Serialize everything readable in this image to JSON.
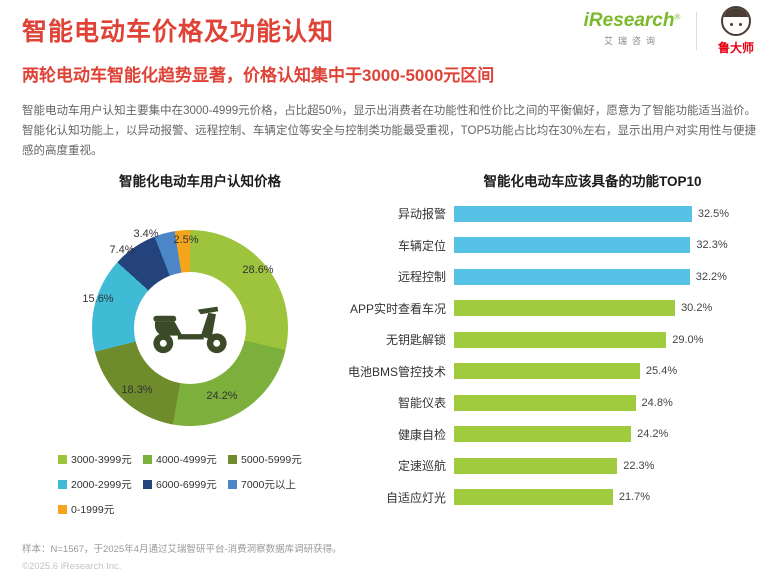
{
  "colors": {
    "accent_red": "#DF4337",
    "brand_green": "#7AB929",
    "ludashi_red": "#E60012",
    "scooter_icon": "#3B4A28"
  },
  "header": {
    "title": "智能电动车价格及功能认知",
    "subtitle": "两轮电动车智能化趋势显著，价格认知集中于3000-5000元区间"
  },
  "logos": {
    "iresearch_name": "iResearch",
    "iresearch_reg": "®",
    "iresearch_cn": "艾瑞咨询",
    "ludashi": "鲁大师"
  },
  "intro": "智能电动车用户认知主要集中在3000-4999元价格，占比超50%，显示出消费者在功能性和性价比之间的平衡偏好，愿意为了智能功能适当溢价。智能化认知功能上，以异动报警、远程控制、车辆定位等安全与控制类功能最受重视，TOP5功能占比均在30%左右，显示出用户对实用性与便捷感的高度重视。",
  "footnote": "样本：N=1567，于2025年4月通过艾瑞智研平台-消费洞察数据库调研获得。",
  "copyright": "©2025.6 iResearch Inc.",
  "chart_data": [
    {
      "type": "pie",
      "title": "智能化电动车用户认知价格",
      "center_icon": "scooter-icon",
      "slices": [
        {
          "label": "3000-3999元",
          "value": 28.6,
          "display": "28.6%",
          "color": "#9DC43C"
        },
        {
          "label": "4000-4999元",
          "value": 24.2,
          "display": "24.2%",
          "color": "#7CAF3C"
        },
        {
          "label": "5000-5999元",
          "value": 18.3,
          "display": "18.3%",
          "color": "#6E8C2B"
        },
        {
          "label": "2000-2999元",
          "value": 15.6,
          "display": "15.6%",
          "color": "#3FBBD5"
        },
        {
          "label": "6000-6999元",
          "value": 7.4,
          "display": "7.4%",
          "color": "#24437C"
        },
        {
          "label": "7000元以上",
          "value": 3.4,
          "display": "3.4%",
          "color": "#4B86C8"
        },
        {
          "label": "0-1999元",
          "value": 2.5,
          "display": "2.5%",
          "color": "#F7A41D"
        }
      ],
      "legend_position": "bottom"
    },
    {
      "type": "bar",
      "title": "智能化电动车应该具备的功能TOP10",
      "orientation": "horizontal",
      "xlim": [
        0,
        33
      ],
      "items": [
        {
          "label": "异动报警",
          "value": 32.5,
          "display": "32.5%",
          "color": "#58C2E6"
        },
        {
          "label": "车辆定位",
          "value": 32.3,
          "display": "32.3%",
          "color": "#58C2E6"
        },
        {
          "label": "远程控制",
          "value": 32.2,
          "display": "32.2%",
          "color": "#58C2E6"
        },
        {
          "label": "APP实时查看车况",
          "value": 30.2,
          "display": "30.2%",
          "color": "#A0CB3F"
        },
        {
          "label": "无钥匙解锁",
          "value": 29.0,
          "display": "29.0%",
          "color": "#A0CB3F"
        },
        {
          "label": "电池BMS管控技术",
          "value": 25.4,
          "display": "25.4%",
          "color": "#A0CB3F"
        },
        {
          "label": "智能仪表",
          "value": 24.8,
          "display": "24.8%",
          "color": "#A0CB3F"
        },
        {
          "label": "健康自检",
          "value": 24.2,
          "display": "24.2%",
          "color": "#A0CB3F"
        },
        {
          "label": "定速巡航",
          "value": 22.3,
          "display": "22.3%",
          "color": "#A0CB3F"
        },
        {
          "label": "自适应灯光",
          "value": 21.7,
          "display": "21.7%",
          "color": "#A0CB3F"
        }
      ]
    }
  ]
}
